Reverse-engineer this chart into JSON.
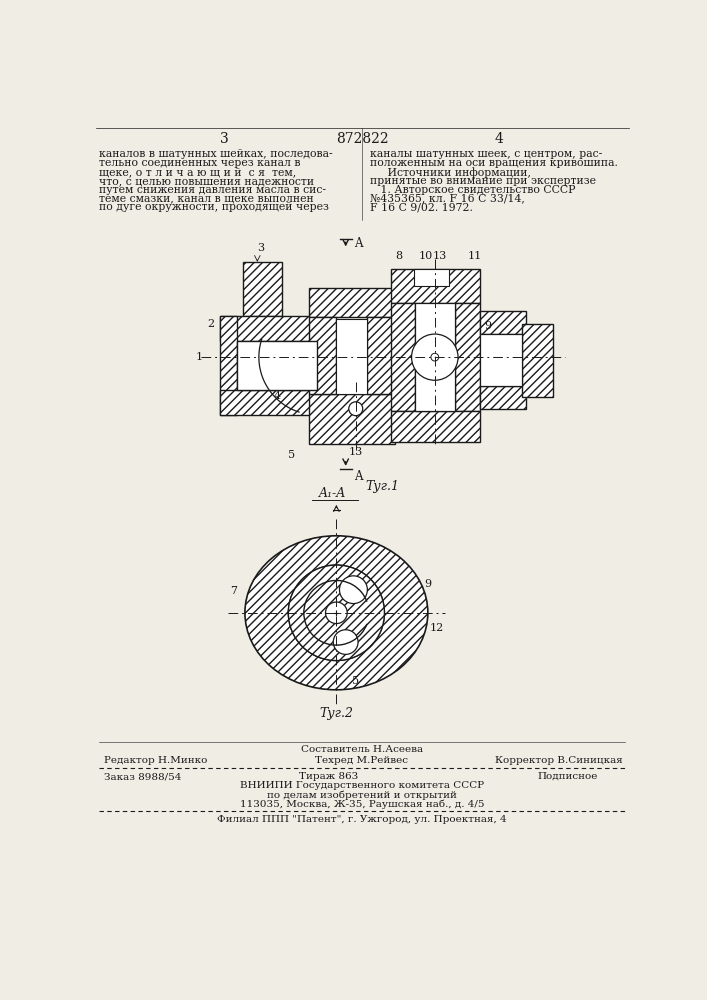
{
  "bg_color": "#f0ede5",
  "line_color": "#1a1a1a",
  "hatch_color": "#2a2a2a",
  "title": "872822",
  "page_left": "3",
  "page_right": "4",
  "fig1_caption": "Τуг.1",
  "fig2_caption": "Τуг.2",
  "section_label": "A₁-A",
  "cut_A": "A",
  "label_1": "1",
  "label_2": "2",
  "label_3": "3",
  "label_4": "4",
  "label_5": "5",
  "label_6": "6",
  "label_7": "7",
  "label_8": "8",
  "label_9": "9",
  "label_10": "10",
  "label_11": "11",
  "label_12": "12",
  "label_13b": "13",
  "text_left_lines": [
    "каналов в шатунных шейках, последова-",
    "тельно соединенных через канал в",
    "щеке, о т л и ч а ю щ и й  с я  тем,",
    "что, с целью повышения надежности",
    "путем снижения давления масла в сис-",
    "теме смазки, канал в щеке выполнен",
    "по дуге окружности, проходящей через"
  ],
  "text_right_lines": [
    "каналы шатунных шеек, с центром, рас-",
    "положенным на оси вращения кривошипа.",
    "     Источники информации,",
    "принятые во внимание при экспертизе",
    "   1. Авторское свидетельство СССР",
    "№435365, кл. F 16 C 33/14,",
    "F 16 C 9/02. 1972."
  ],
  "footer_editor": "Редактор Н.Минко",
  "footer_composer": "Составитель Н.Асеева",
  "footer_techred": "Техред М.Рейвес",
  "footer_corrector": "Корректор В.Синицкая",
  "footer_order": "Заказ 8988/54",
  "footer_tirazh": "Тираж 863",
  "footer_podp": "Подписное",
  "footer_vniip": "ВНИИПИ Государственного комитета СССР",
  "footer_po": "по делам изобретений и открытий",
  "footer_addr": "113035, Москва, Ж-35, Раушская наб., д. 4/5",
  "footer_filial": "Филиал ППП \"Патент\", г. Ужгород, ул. Проектная, 4"
}
